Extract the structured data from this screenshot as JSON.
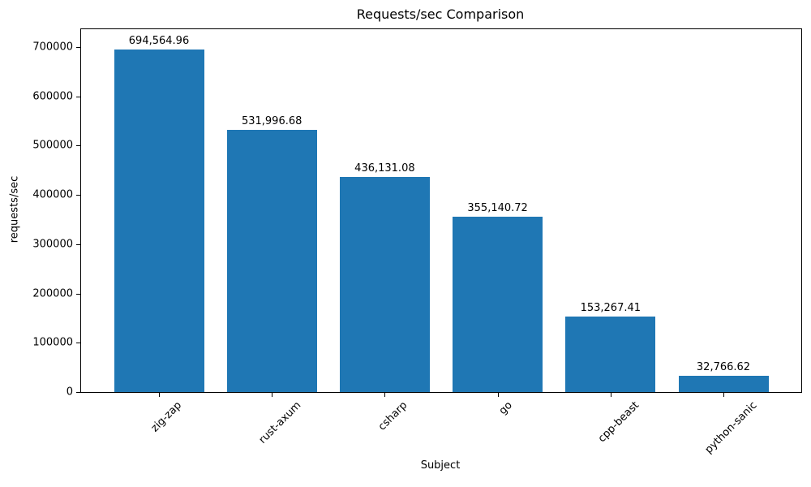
{
  "chart_data": {
    "type": "bar",
    "title": "Requests/sec Comparison",
    "xlabel": "Subject",
    "ylabel": "requests/sec",
    "categories": [
      "zig-zap",
      "rust-axum",
      "csharp",
      "go",
      "cpp-beast",
      "python-sanic"
    ],
    "values": [
      694564.96,
      531996.68,
      436131.08,
      355140.72,
      153267.41,
      32766.62
    ],
    "value_labels": [
      "694,564.96",
      "531,996.68",
      "436,131.08",
      "355,140.72",
      "153,267.41",
      "32,766.62"
    ],
    "series_name": "requests/sec",
    "bar_color": "#1f77b4",
    "ylim": [
      0,
      736000
    ],
    "yticks": [
      0,
      100000,
      200000,
      300000,
      400000,
      500000,
      600000,
      700000
    ],
    "x_tick_rotation": 45,
    "grid": false,
    "legend_position": "none"
  }
}
